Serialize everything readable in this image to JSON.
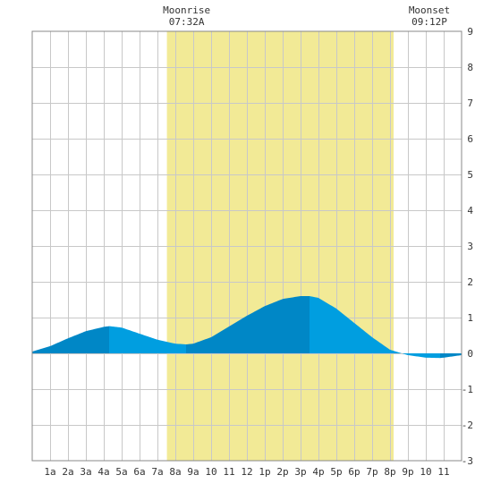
{
  "chart_data": {
    "type": "area",
    "x_ticks": [
      "1a",
      "2a",
      "3a",
      "4a",
      "5a",
      "6a",
      "7a",
      "8a",
      "9a",
      "10",
      "11",
      "12",
      "1p",
      "2p",
      "3p",
      "4p",
      "5p",
      "6p",
      "7p",
      "8p",
      "9p",
      "10",
      "11"
    ],
    "y_ticks": [
      "9",
      "8",
      "7",
      "6",
      "5",
      "4",
      "3",
      "2",
      "1",
      "0",
      "-1",
      "-2",
      "-3"
    ],
    "ylim": [
      -3,
      9
    ],
    "xlim_hours": [
      0,
      24
    ],
    "grid": true,
    "moonrise": {
      "label": "Moonrise",
      "time": "07:32A",
      "hour": 7.53
    },
    "moonset": {
      "label": "Moonset",
      "time": "09:12P",
      "hour": 20.2
    },
    "tide_series": {
      "hours": [
        0,
        1,
        2,
        3,
        4,
        4.3,
        5,
        6,
        7,
        8,
        8.6,
        9,
        10,
        11,
        12,
        13,
        14,
        15,
        15.5,
        16,
        17,
        18,
        19,
        20,
        21,
        22,
        22.8,
        23,
        24
      ],
      "values": [
        0.05,
        0.2,
        0.42,
        0.62,
        0.74,
        0.76,
        0.72,
        0.55,
        0.38,
        0.27,
        0.25,
        0.27,
        0.45,
        0.75,
        1.05,
        1.32,
        1.52,
        1.6,
        1.6,
        1.55,
        1.25,
        0.85,
        0.45,
        0.1,
        -0.05,
        -0.12,
        -0.13,
        -0.12,
        -0.05
      ]
    },
    "tide_change_hours": [
      4.3,
      8.6,
      15.5,
      22.8
    ],
    "colors": {
      "daylight_band": "#f2ea96",
      "tide_dark": "#0087c6",
      "tide_light": "#009ee0",
      "grid": "#c8c8c8",
      "frame": "#888888"
    }
  }
}
